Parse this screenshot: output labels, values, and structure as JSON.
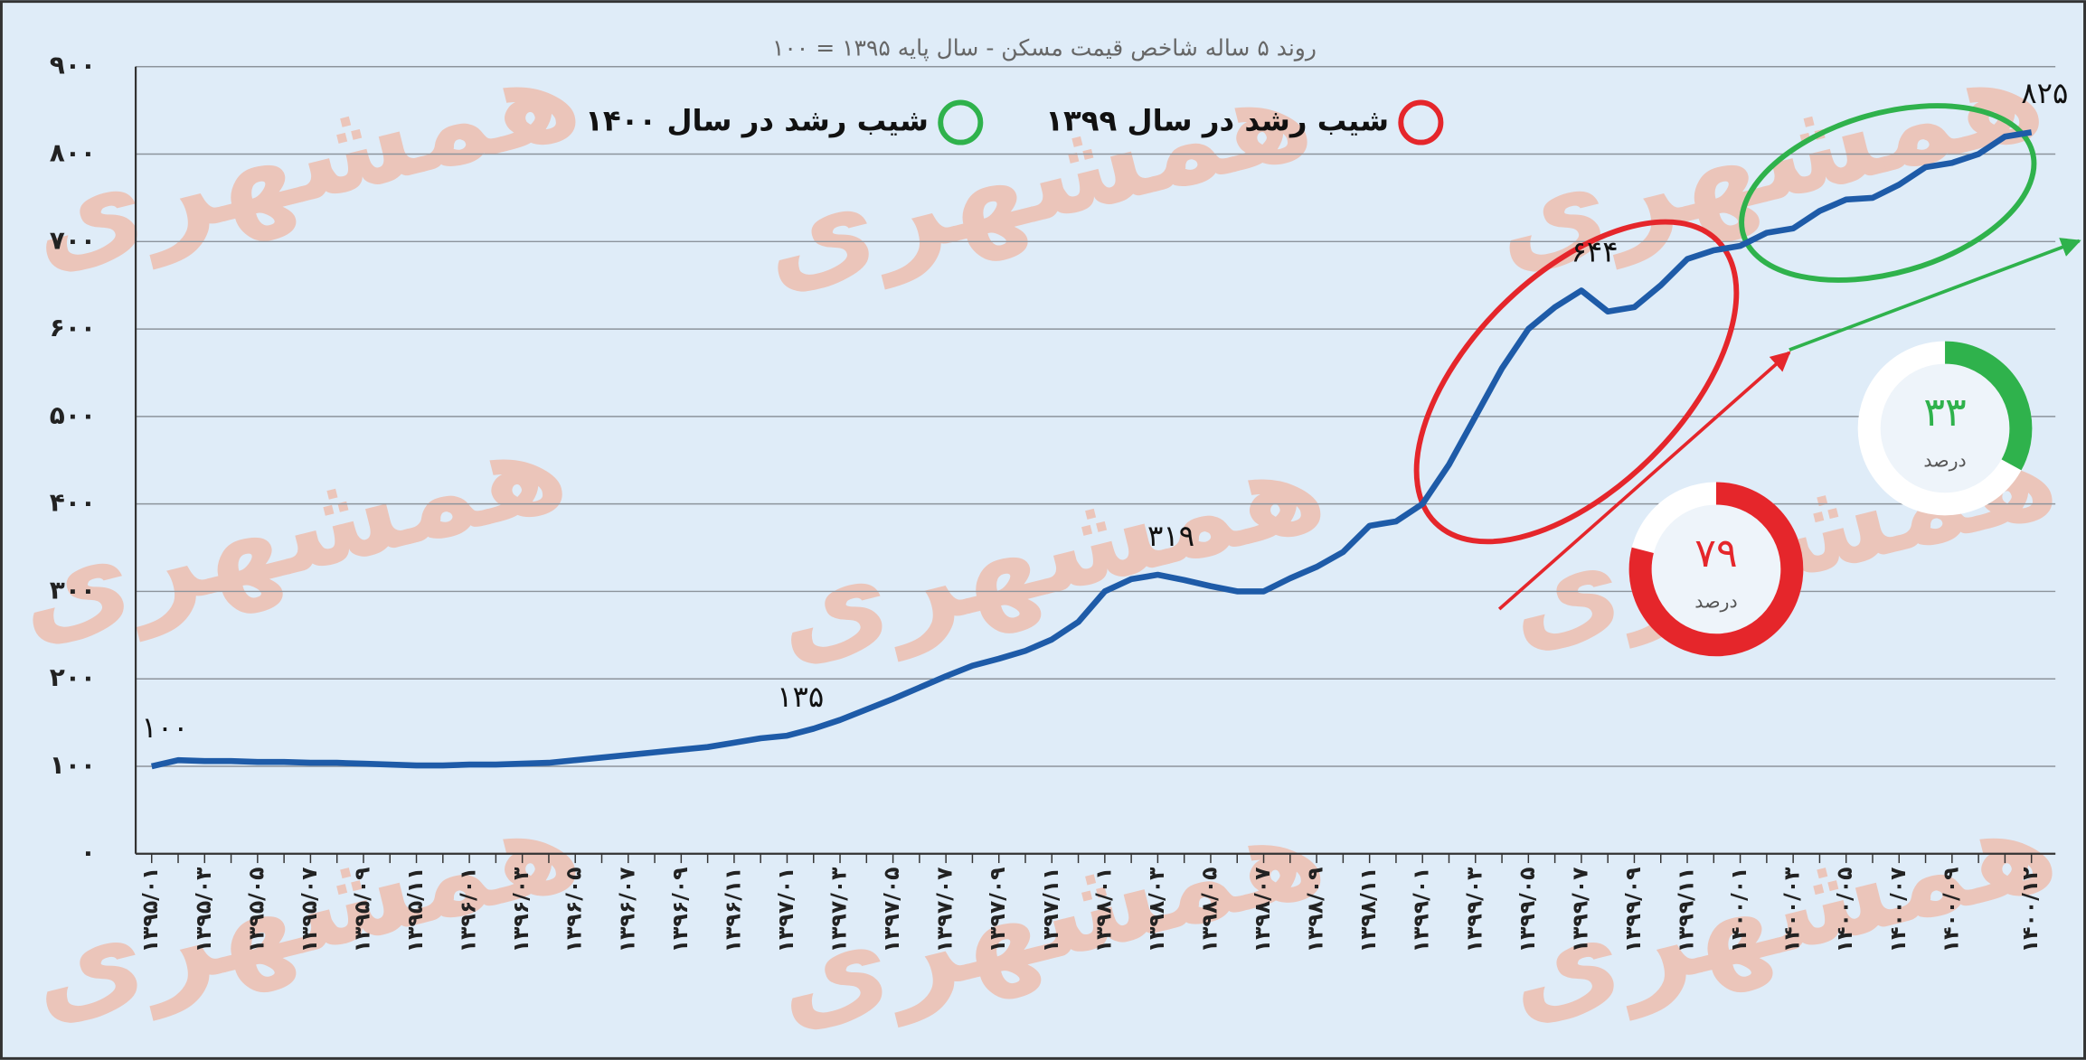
{
  "chart_data": {
    "type": "line",
    "title": "روند ۵ ساله شاخص قیمت مسکن - سال پایه ۱۳۹۵ = ۱۰۰",
    "watermark": "همشهری",
    "color": "#1e5ba8",
    "categories": [
      "۱۳۹۵/۰۱",
      null,
      "۱۳۹۵/۰۳",
      null,
      "۱۳۹۵/۰۵",
      null,
      "۱۳۹۵/۰۷",
      null,
      "۱۳۹۵/۰۹",
      null,
      "۱۳۹۵/۱۱",
      null,
      "۱۳۹۶/۰۱",
      null,
      "۱۳۹۶/۰۳",
      null,
      "۱۳۹۶/۰۵",
      null,
      "۱۳۹۶/۰۷",
      null,
      "۱۳۹۶/۰۹",
      null,
      "۱۳۹۶/۱۱",
      null,
      "۱۳۹۷/۰۱",
      null,
      "۱۳۹۷/۰۳",
      null,
      "۱۳۹۷/۰۵",
      null,
      "۱۳۹۷/۰۷",
      null,
      "۱۳۹۷/۰۹",
      null,
      "۱۳۹۷/۱۱",
      null,
      "۱۳۹۸/۰۱",
      null,
      "۱۳۹۸/۰۳",
      null,
      "۱۳۹۸/۰۵",
      null,
      "۱۳۹۸/۰۷",
      null,
      "۱۳۹۸/۰۹",
      null,
      "۱۳۹۸/۱۱",
      null,
      "۱۳۹۹/۰۱",
      null,
      "۱۳۹۹/۰۳",
      null,
      "۱۳۹۹/۰۵",
      null,
      "۱۳۹۹/۰۷",
      null,
      "۱۳۹۹/۰۹",
      null,
      "۱۳۹۹/۱۱",
      null,
      "۱۴۰۰/۰۱",
      null,
      "۱۴۰۰/۰۳",
      null,
      "۱۴۰۰/۰۵",
      null,
      "۱۴۰۰/۰۷",
      null,
      "۱۴۰۰/۰۹",
      null,
      null,
      "۱۴۰۰/۱۲"
    ],
    "values": [
      100,
      107,
      106,
      106,
      105,
      105,
      104,
      104,
      103,
      102,
      101,
      101,
      102,
      102,
      103,
      104,
      107,
      110,
      113,
      116,
      119,
      122,
      127,
      132,
      135,
      143,
      153,
      165,
      177,
      190,
      203,
      215,
      223,
      232,
      245,
      265,
      300,
      314,
      319,
      313,
      306,
      300,
      300,
      315,
      328,
      345,
      375,
      380,
      400,
      445,
      500,
      555,
      600,
      625,
      644,
      620,
      625,
      650,
      680,
      690,
      695,
      710,
      715,
      735,
      748,
      750,
      765,
      785,
      790,
      800,
      820,
      825
    ],
    "value_labels": [
      "۱۰۰",
      null,
      null,
      null,
      null,
      null,
      null,
      null,
      null,
      null,
      null,
      null,
      null,
      null,
      null,
      null,
      null,
      null,
      null,
      null,
      null,
      null,
      null,
      null,
      "۱۳۵",
      null,
      null,
      null,
      null,
      null,
      null,
      null,
      null,
      null,
      null,
      null,
      null,
      null,
      "۳۱۹",
      null,
      null,
      null,
      null,
      null,
      null,
      null,
      null,
      null,
      null,
      null,
      null,
      null,
      null,
      null,
      "۶۴۴",
      null,
      null,
      null,
      null,
      null,
      null,
      null,
      null,
      null,
      null,
      null,
      null,
      null,
      null,
      null,
      null,
      "۸۲۵"
    ],
    "ylim": [
      0,
      900
    ],
    "yticks": [
      {
        "value": 0,
        "label": "۰"
      },
      {
        "value": 100,
        "label": "۱۰۰"
      },
      {
        "value": 200,
        "label": "۲۰۰"
      },
      {
        "value": 300,
        "label": "۳۰۰"
      },
      {
        "value": 400,
        "label": "۴۰۰"
      },
      {
        "value": 500,
        "label": "۵۰۰"
      },
      {
        "value": 600,
        "label": "۶۰۰"
      },
      {
        "value": 700,
        "label": "۷۰۰"
      },
      {
        "value": 800,
        "label": "۸۰۰"
      },
      {
        "value": 900,
        "label": "۹۰۰"
      }
    ],
    "grid": true,
    "legend": [
      {
        "label": "شیب رشد در سال ۱۴۰۰",
        "color": "#2fb24c"
      },
      {
        "label": "شیب رشد در سال ۱۳۹۹",
        "color": "#e5262b"
      }
    ],
    "donuts": [
      {
        "value": 79,
        "label": "۷۹",
        "unit": "درصد",
        "color": "#e5262b"
      },
      {
        "value": 33,
        "label": "۳۳",
        "unit": "درصد",
        "color": "#2fb24c"
      }
    ]
  }
}
